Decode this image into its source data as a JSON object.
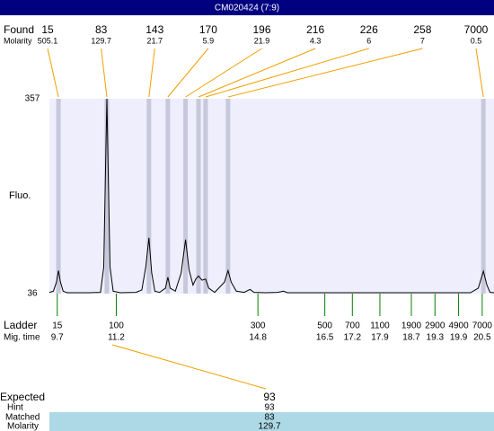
{
  "chart_data": {
    "type": "electropherogram",
    "title": "CM020424 (7:9)",
    "ylabel": "Fluo.",
    "ylim": [
      36,
      357
    ],
    "yticks": [
      36,
      357
    ],
    "xlim": [
      9.5,
      20.8
    ],
    "found": {
      "label": "Found",
      "molarity_label": "Molarity",
      "sizes": [
        15,
        83,
        143,
        170,
        196,
        216,
        226,
        258,
        7000
      ],
      "molarity": [
        505.1,
        129.7,
        21.7,
        5.9,
        21.9,
        4.3,
        6,
        7,
        0.5
      ],
      "times": [
        9.73,
        10.96,
        12.03,
        12.51,
        12.96,
        13.29,
        13.47,
        14.04,
        20.53
      ]
    },
    "ladder": {
      "label": "Ladder",
      "time_label": "Mig. time",
      "sizes": [
        15,
        100,
        300,
        500,
        700,
        1100,
        1900,
        2900,
        4900,
        7000
      ],
      "times": [
        9.7,
        11.2,
        14.8,
        16.5,
        17.2,
        17.9,
        18.7,
        19.3,
        19.9,
        20.5
      ]
    },
    "series": [
      {
        "color": "#000000",
        "x": [
          9.5,
          9.6,
          9.68,
          9.73,
          9.78,
          9.85,
          9.95,
          10.5,
          10.8,
          10.88,
          10.93,
          10.96,
          10.99,
          11.04,
          11.12,
          11.3,
          11.7,
          11.85,
          11.95,
          12.03,
          12.1,
          12.18,
          12.3,
          12.45,
          12.51,
          12.57,
          12.7,
          12.85,
          12.96,
          13.05,
          13.15,
          13.22,
          13.29,
          13.38,
          13.47,
          13.55,
          13.7,
          13.95,
          14.04,
          14.12,
          14.25,
          14.45,
          14.6,
          14.7,
          15.0,
          15.3,
          15.45,
          15.55,
          16.5,
          18.7,
          20.2,
          20.4,
          20.53,
          20.62,
          20.7,
          20.8
        ],
        "values": [
          38,
          40,
          55,
          74,
          55,
          40,
          37.5,
          37.5,
          38,
          80,
          250,
          357,
          250,
          80,
          40,
          37.5,
          38,
          42,
          80,
          128,
          70,
          40,
          38,
          45,
          63,
          45,
          40,
          70,
          125,
          75,
          50,
          60,
          65,
          58,
          60,
          45,
          38,
          55,
          74,
          55,
          40,
          38,
          43,
          38,
          37.5,
          38,
          40,
          37.5,
          37.5,
          37.5,
          37.5,
          45,
          73,
          50,
          38,
          37.5
        ]
      }
    ],
    "expected": {
      "label": "Expected",
      "value": 93
    },
    "hint": {
      "label": "Hint",
      "value": 93
    },
    "matched": {
      "label": "Matched",
      "value": 83
    },
    "matched_molarity": {
      "label": "Molarity",
      "value": 129.7
    }
  }
}
